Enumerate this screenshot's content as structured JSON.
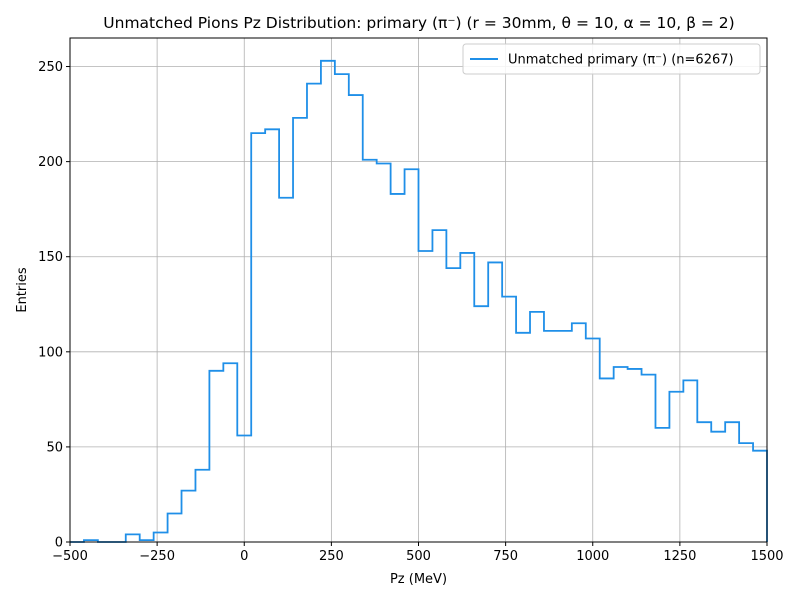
{
  "chart_data": {
    "type": "line",
    "style": "step-histogram",
    "title": "Unmatched Pions Pz Distribution: primary (π⁻) (r = 30mm, θ = 10, α = 10, β = 2)",
    "xlabel": "Pz (MeV)",
    "ylabel": "Entries",
    "xlim": [
      -500,
      1500
    ],
    "ylim": [
      0,
      265
    ],
    "xticks": [
      -500,
      -250,
      0,
      250,
      500,
      750,
      1000,
      1250,
      1500
    ],
    "xtick_labels": [
      "−500",
      "−250",
      "0",
      "250",
      "500",
      "750",
      "1000",
      "1250",
      "1500"
    ],
    "yticks": [
      0,
      50,
      100,
      150,
      200,
      250
    ],
    "ytick_labels": [
      "0",
      "50",
      "100",
      "150",
      "200",
      "250"
    ],
    "grid": true,
    "legend_position": "top-right",
    "series": [
      {
        "name": "Unmatched primary (π⁻) (n=6267)",
        "color": "#1f8fe8",
        "bin_edges": [
          -500,
          -460,
          -420,
          -380,
          -340,
          -300,
          -260,
          -220,
          -180,
          -140,
          -100,
          -60,
          -20,
          20,
          60,
          100,
          140,
          180,
          220,
          260,
          300,
          340,
          380,
          420,
          460,
          500,
          540,
          580,
          620,
          660,
          700,
          740,
          780,
          820,
          860,
          900,
          940,
          980,
          1020,
          1060,
          1100,
          1140,
          1180,
          1220,
          1260,
          1300,
          1340,
          1380,
          1420,
          1460,
          1500
        ],
        "values": [
          0,
          1,
          0,
          0,
          4,
          1,
          5,
          15,
          27,
          38,
          90,
          94,
          56,
          215,
          217,
          181,
          223,
          241,
          253,
          246,
          235,
          201,
          199,
          183,
          196,
          153,
          164,
          144,
          152,
          124,
          147,
          129,
          110,
          121,
          111,
          111,
          115,
          107,
          86,
          92,
          91,
          88,
          60,
          79,
          85,
          63,
          58,
          63,
          52,
          48
        ]
      }
    ]
  }
}
